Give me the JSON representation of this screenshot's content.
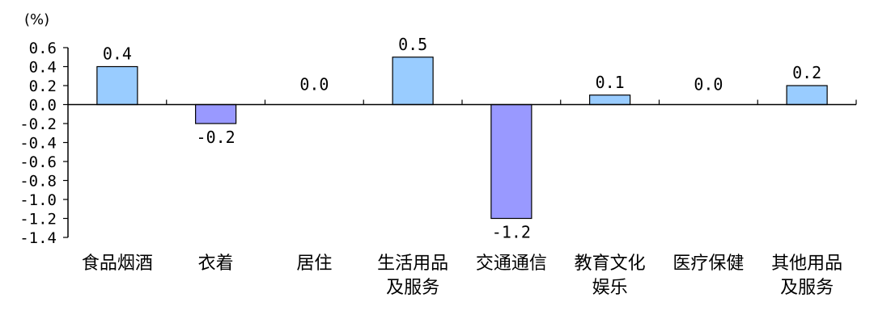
{
  "chart_data": {
    "type": "bar",
    "unit": "(%)",
    "categories": [
      [
        "食品烟酒"
      ],
      [
        "衣着"
      ],
      [
        "居住"
      ],
      [
        "生活用品",
        "及服务"
      ],
      [
        "交通通信"
      ],
      [
        "教育文化",
        "娱乐"
      ],
      [
        "医疗保健"
      ],
      [
        "其他用品",
        "及服务"
      ]
    ],
    "values": [
      0.4,
      -0.2,
      0.0,
      0.5,
      -1.2,
      0.1,
      0.0,
      0.2
    ],
    "value_labels": [
      "0.4",
      "-0.2",
      "0.0",
      "0.5",
      "-1.2",
      "0.1",
      "0.0",
      "0.2"
    ],
    "ylim": [
      -1.4,
      0.6
    ],
    "yticks": [
      "0.6",
      "0.4",
      "0.2",
      "0.0",
      "-0.2",
      "-0.4",
      "-0.6",
      "-0.8",
      "-1.0",
      "-1.2",
      "-1.4"
    ],
    "ytick_values": [
      0.6,
      0.4,
      0.2,
      0.0,
      -0.2,
      -0.4,
      -0.6,
      -0.8,
      -1.0,
      -1.2,
      -1.4
    ],
    "grid": false,
    "colors": {
      "positive": "#99ccff",
      "negative": "#9999ff",
      "stroke": "#000000"
    }
  }
}
